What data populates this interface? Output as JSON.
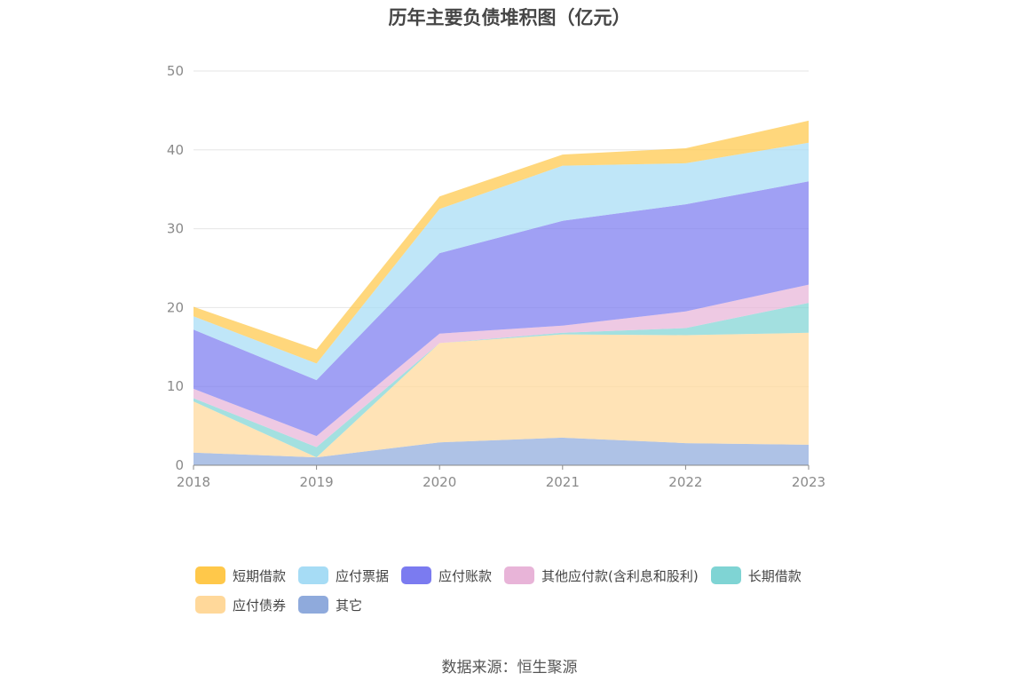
{
  "chart_data": {
    "type": "area",
    "stacked": true,
    "title": "历年主要负债堆积图（亿元）",
    "x": [
      "2018",
      "2019",
      "2020",
      "2021",
      "2022",
      "2023"
    ],
    "ylim": [
      0,
      50
    ],
    "yticks": [
      "0",
      "10",
      "20",
      "30",
      "40",
      "50"
    ],
    "grid": true,
    "legend_position": "bottom",
    "series": [
      {
        "name": "其它",
        "color": "#8faadc",
        "values": [
          1.6,
          1.0,
          2.9,
          3.5,
          2.8,
          2.6
        ]
      },
      {
        "name": "应付债券",
        "color": "#ffd89a",
        "values": [
          6.5,
          0.0,
          12.6,
          13.1,
          13.7,
          14.2
        ]
      },
      {
        "name": "长期借款",
        "color": "#7fd4d4",
        "values": [
          0.4,
          1.3,
          0.0,
          0.2,
          0.9,
          3.8
        ]
      },
      {
        "name": "其他应付款(含利息和股利)",
        "color": "#e8b4d8",
        "values": [
          1.2,
          1.4,
          1.2,
          0.9,
          2.1,
          2.3
        ]
      },
      {
        "name": "应付账款",
        "color": "#7b7bf0",
        "values": [
          7.5,
          7.1,
          10.2,
          13.3,
          13.6,
          13.1
        ]
      },
      {
        "name": "应付票据",
        "color": "#a6dcf5",
        "values": [
          1.7,
          2.1,
          5.6,
          7.0,
          5.2,
          4.9
        ]
      },
      {
        "name": "短期借款",
        "color": "#ffc84a",
        "values": [
          1.2,
          1.8,
          1.6,
          1.4,
          1.9,
          2.8
        ]
      }
    ],
    "legend_order": [
      "短期借款",
      "应付票据",
      "应付账款",
      "其他应付款(含利息和股利)",
      "长期借款",
      "应付债券",
      "其它"
    ]
  },
  "source_text": "数据来源：恒生聚源"
}
